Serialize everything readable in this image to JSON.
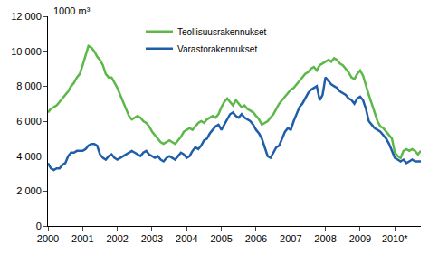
{
  "chart_data": {
    "type": "line",
    "y_label": "1000 m³",
    "categories": [
      "2000",
      null,
      null,
      null,
      null,
      null,
      null,
      null,
      null,
      null,
      null,
      null,
      "2001",
      null,
      null,
      null,
      null,
      null,
      null,
      null,
      null,
      null,
      null,
      null,
      "2002",
      null,
      null,
      null,
      null,
      null,
      null,
      null,
      null,
      null,
      null,
      null,
      "2003",
      null,
      null,
      null,
      null,
      null,
      null,
      null,
      null,
      null,
      null,
      null,
      "2004",
      null,
      null,
      null,
      null,
      null,
      null,
      null,
      null,
      null,
      null,
      null,
      "2005",
      null,
      null,
      null,
      null,
      null,
      null,
      null,
      null,
      null,
      null,
      null,
      "2006",
      null,
      null,
      null,
      null,
      null,
      null,
      null,
      null,
      null,
      null,
      null,
      "2007",
      null,
      null,
      null,
      null,
      null,
      null,
      null,
      null,
      null,
      null,
      null,
      "2008",
      null,
      null,
      null,
      null,
      null,
      null,
      null,
      null,
      null,
      null,
      null,
      "2009",
      null,
      null,
      null,
      null,
      null,
      null,
      null,
      null,
      null,
      null,
      null,
      "2010*",
      null,
      null,
      null,
      null,
      null,
      null,
      null,
      null,
      null
    ],
    "series": [
      {
        "name": "Teollisuusrakennukset",
        "color": "#5cb848",
        "values": [
          6500,
          6700,
          6800,
          6900,
          7100,
          7300,
          7500,
          7700,
          8000,
          8200,
          8500,
          8700,
          9200,
          9800,
          10300,
          10200,
          10000,
          9700,
          9500,
          9200,
          8700,
          8500,
          8500,
          8200,
          7900,
          7500,
          7100,
          6700,
          6300,
          6100,
          6200,
          6300,
          6200,
          6000,
          5900,
          5700,
          5400,
          5200,
          5000,
          4800,
          4700,
          4800,
          4900,
          4800,
          4700,
          4900,
          5100,
          5400,
          5500,
          5600,
          5500,
          5700,
          5900,
          6000,
          5900,
          6100,
          6200,
          6300,
          6200,
          6400,
          6800,
          7100,
          7300,
          7100,
          6900,
          7200,
          7000,
          6800,
          6900,
          6700,
          6600,
          6500,
          6300,
          6100,
          5800,
          5900,
          6000,
          6200,
          6400,
          6700,
          7000,
          7200,
          7400,
          7600,
          7800,
          7900,
          8100,
          8300,
          8500,
          8700,
          8800,
          9000,
          9100,
          8900,
          9200,
          9300,
          9400,
          9500,
          9400,
          9600,
          9500,
          9300,
          9200,
          9000,
          8800,
          8500,
          8400,
          8700,
          8900,
          8600,
          8000,
          7500,
          7000,
          6500,
          6000,
          5700,
          5600,
          5400,
          5200,
          5000,
          4200,
          4000,
          3900,
          4300,
          4400,
          4300,
          4400,
          4300,
          4100,
          4300
        ]
      },
      {
        "name": "Varastorakennukset",
        "color": "#1f5ea8",
        "values": [
          3600,
          3300,
          3200,
          3300,
          3300,
          3500,
          3600,
          4000,
          4200,
          4200,
          4300,
          4300,
          4300,
          4400,
          4600,
          4700,
          4700,
          4600,
          4100,
          3900,
          3800,
          4000,
          4100,
          3900,
          3800,
          3900,
          4000,
          4100,
          4200,
          4300,
          4200,
          4100,
          4000,
          4200,
          4300,
          4100,
          4000,
          3900,
          4000,
          3800,
          3700,
          3900,
          4000,
          3900,
          3800,
          4000,
          4200,
          4100,
          3900,
          4000,
          4300,
          4500,
          4400,
          4600,
          4900,
          5000,
          5300,
          5500,
          5700,
          5800,
          5500,
          5800,
          6100,
          6400,
          6500,
          6300,
          6200,
          6400,
          6200,
          6100,
          6000,
          5800,
          5500,
          5300,
          5000,
          4500,
          4000,
          3900,
          4200,
          4500,
          4600,
          5000,
          5400,
          5600,
          5500,
          6000,
          6400,
          6800,
          7000,
          7300,
          7600,
          7800,
          7900,
          8000,
          7200,
          7500,
          8500,
          8300,
          8100,
          8000,
          7900,
          7700,
          7600,
          7500,
          7300,
          7200,
          7000,
          7300,
          7400,
          7200,
          6700,
          6000,
          5800,
          5600,
          5500,
          5400,
          5200,
          5000,
          4700,
          4300,
          3900,
          3800,
          3700,
          3800,
          3600,
          3700,
          3800,
          3700,
          3700,
          3700
        ]
      }
    ],
    "ylim": [
      0,
      12000
    ],
    "yticks": [
      0,
      {
        "value": 2000,
        "label": "2 000"
      },
      {
        "value": 4000,
        "label": "4 000"
      },
      {
        "value": 6000,
        "label": "6 000"
      },
      {
        "value": 8000,
        "label": "8 000"
      },
      {
        "value": 10000,
        "label": "10 000"
      },
      {
        "value": 12000,
        "label": "12 000"
      }
    ],
    "grid": false,
    "legend": "top"
  }
}
